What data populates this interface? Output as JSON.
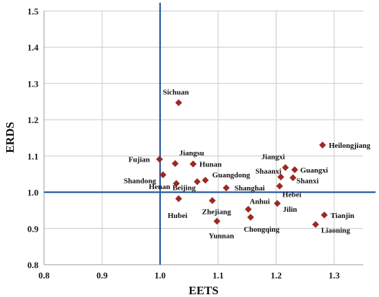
{
  "chart_data": {
    "type": "scatter",
    "xlabel": "EETS",
    "ylabel": "ERDS",
    "xlim": [
      0.8,
      1.35
    ],
    "ylim": [
      0.8,
      1.5
    ],
    "x_ticks": [
      "0.8",
      "0.9",
      "1.0",
      "1.1",
      "1.2",
      "1.3"
    ],
    "y_ticks": [
      "0.8",
      "0.9",
      "1.0",
      "1.1",
      "1.2",
      "1.3",
      "1.4",
      "1.5"
    ],
    "grid": true,
    "reference_lines": {
      "x": 1.0,
      "y": 1.0
    },
    "marker_color": "#9B2A22",
    "reference_line_color": "#2E5FA7",
    "points": [
      {
        "name": "Sichuan",
        "x": 1.032,
        "y": 1.247
      },
      {
        "name": "Heilongjiang",
        "x": 1.28,
        "y": 1.13
      },
      {
        "name": "Jiangsu",
        "x": 1.026,
        "y": 1.079
      },
      {
        "name": "Fujian",
        "x": 0.999,
        "y": 1.091
      },
      {
        "name": "Hunan",
        "x": 1.057,
        "y": 1.078
      },
      {
        "name": "Jiangxi",
        "x": 1.216,
        "y": 1.068
      },
      {
        "name": "Guangxi",
        "x": 1.232,
        "y": 1.062
      },
      {
        "name": "Shaanxi",
        "x": 1.208,
        "y": 1.042
      },
      {
        "name": "Shanxi",
        "x": 1.229,
        "y": 1.04
      },
      {
        "name": "Shandong",
        "x": 1.005,
        "y": 1.048
      },
      {
        "name": "Guangdong",
        "x": 1.078,
        "y": 1.033
      },
      {
        "name": "Beijing",
        "x": 1.064,
        "y": 1.029
      },
      {
        "name": "Henan",
        "x": 1.028,
        "y": 1.024
      },
      {
        "name": "Hebei",
        "x": 1.206,
        "y": 1.017
      },
      {
        "name": "Shanghai",
        "x": 1.114,
        "y": 1.012
      },
      {
        "name": "Hubei",
        "x": 1.032,
        "y": 0.982
      },
      {
        "name": "Zhejiang",
        "x": 1.09,
        "y": 0.977
      },
      {
        "name": "Anhui",
        "x": 1.152,
        "y": 0.953
      },
      {
        "name": "Jilin",
        "x": 1.202,
        "y": 0.969
      },
      {
        "name": "Tianjin",
        "x": 1.283,
        "y": 0.937
      },
      {
        "name": "Chongqing",
        "x": 1.156,
        "y": 0.931
      },
      {
        "name": "Yunnan",
        "x": 1.098,
        "y": 0.92
      },
      {
        "name": "Liaoning",
        "x": 1.268,
        "y": 0.911
      }
    ]
  }
}
